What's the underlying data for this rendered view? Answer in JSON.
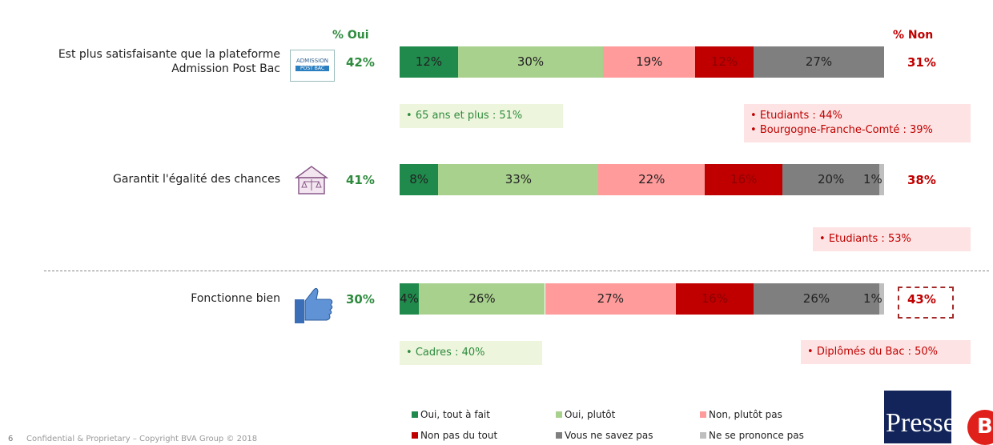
{
  "chart_data": {
    "type": "bar",
    "orientation": "horizontal",
    "stacked": true,
    "categories": [
      "Est plus satisfaisante que la plateforme Admission Post Bac",
      "Garantit l'égalité des chances",
      "Fonctionne bien"
    ],
    "series": [
      {
        "name": "Oui, tout à fait",
        "color": "#1f8a4c",
        "values": [
          12,
          8,
          4
        ],
        "value_labels": [
          "12%",
          "8%",
          "4%"
        ]
      },
      {
        "name": "Oui, plutôt",
        "color": "#a9d18e",
        "values": [
          30,
          33,
          26
        ],
        "value_labels": [
          "30%",
          "33%",
          "26%"
        ]
      },
      {
        "name": "Non, plutôt pas",
        "color": "#ff9b9b",
        "values": [
          19,
          22,
          27
        ],
        "value_labels": [
          "19%",
          "22%",
          "27%"
        ]
      },
      {
        "name": "Non pas du tout",
        "color": "#c00000",
        "values": [
          12,
          16,
          16
        ],
        "value_labels": [
          "12%",
          "16%",
          "16%"
        ]
      },
      {
        "name": "Vous ne savez pas",
        "color": "#7f7f7f",
        "values": [
          27,
          20,
          26
        ],
        "value_labels": [
          "27%",
          "20%",
          "26%"
        ]
      },
      {
        "name": "Ne se prononce pas",
        "color": "#bfbfbf",
        "values": [
          null,
          1,
          1
        ],
        "value_labels": [
          null,
          "1%",
          "1%"
        ]
      }
    ],
    "oui_header": "% Oui",
    "non_header": "% Non",
    "oui_totals": {
      "values": [
        42,
        41,
        30
      ],
      "value_labels": [
        "42%",
        "41%",
        "30%"
      ]
    },
    "non_totals": {
      "values": [
        31,
        38,
        43
      ],
      "value_labels": [
        "31%",
        "38%",
        "43%"
      ]
    },
    "oui_callouts": [
      [
        "65 ans et plus : 51%"
      ],
      [],
      [
        "Cadres : 40%"
      ]
    ],
    "non_callouts": [
      [
        "Etudiants : 44%",
        "Bourgogne-Franche-Comté : 39%"
      ],
      [
        "Etudiants : 53%"
      ],
      [
        "Diplômés du Bac : 50%"
      ]
    ],
    "icon_text": [
      "ADMISSION",
      "POST BAC"
    ],
    "footer": {
      "page": "6",
      "copyright": "Confidential & Proprietary – Copyright BVA Group © 2018"
    },
    "logos": [
      "Presse",
      "B"
    ]
  }
}
